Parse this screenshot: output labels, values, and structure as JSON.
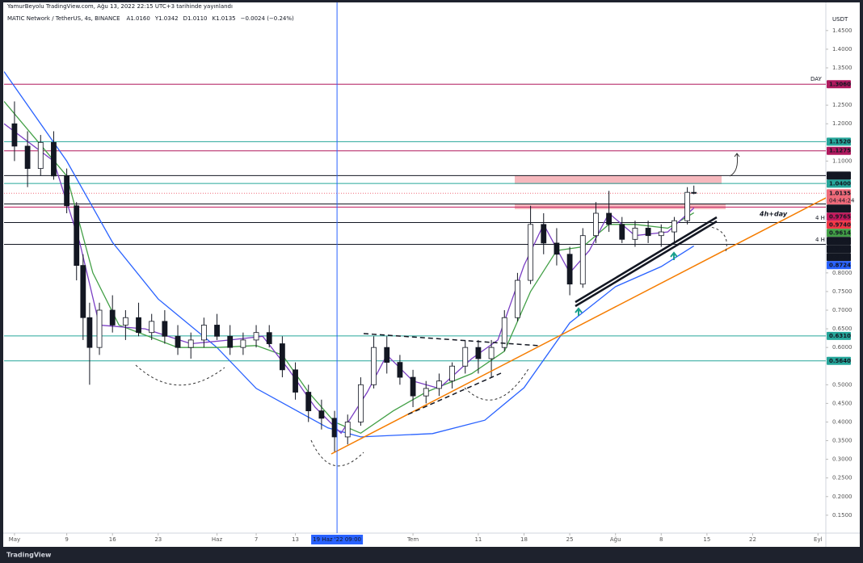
{
  "header": {
    "publisher": "YamurBeyolu TradingView.com, Ağu 13, 2022 22:15 UTC+3 tarihinde yayınlandı"
  },
  "chart_data": {
    "type": "candlestick",
    "symbol": "MATIC Network / TetherUS, 4s, BINANCE",
    "ohlc_legend": [
      "A1.0160",
      "Y1.0342",
      "D1.0110",
      "K1.0135",
      "−0.0024 (−0.24%)"
    ],
    "currency": "USDT",
    "x": [
      0,
      2,
      4,
      6,
      8,
      9.5,
      10.5,
      11.5,
      13,
      15,
      17,
      19,
      21,
      23,
      25,
      27,
      29,
      31,
      33,
      35,
      37,
      39,
      41,
      43,
      45,
      47,
      49,
      51,
      53,
      55,
      57,
      59,
      61,
      63,
      65,
      67,
      69,
      71,
      73,
      75,
      77,
      79,
      81,
      83,
      85,
      87,
      89,
      91,
      93,
      95,
      97,
      99,
      101,
      103,
      104
    ],
    "open": [
      1.2,
      1.14,
      1.08,
      1.15,
      1.06,
      0.98,
      0.82,
      0.68,
      0.6,
      0.7,
      0.66,
      0.68,
      0.64,
      0.67,
      0.63,
      0.6,
      0.62,
      0.66,
      0.63,
      0.6,
      0.62,
      0.64,
      0.61,
      0.54,
      0.48,
      0.43,
      0.41,
      0.36,
      0.4,
      0.5,
      0.6,
      0.56,
      0.52,
      0.47,
      0.49,
      0.51,
      0.55,
      0.6,
      0.57,
      0.6,
      0.68,
      0.78,
      0.93,
      0.88,
      0.85,
      0.77,
      0.9,
      0.96,
      0.93,
      0.89,
      0.92,
      0.9,
      0.91,
      0.94,
      1.016
    ],
    "high": [
      1.26,
      1.18,
      1.17,
      1.18,
      1.08,
      0.99,
      0.85,
      0.72,
      0.72,
      0.74,
      0.7,
      0.72,
      0.69,
      0.7,
      0.66,
      0.64,
      0.68,
      0.69,
      0.66,
      0.64,
      0.66,
      0.66,
      0.63,
      0.56,
      0.5,
      0.46,
      0.43,
      0.42,
      0.52,
      0.63,
      0.63,
      0.58,
      0.54,
      0.51,
      0.53,
      0.56,
      0.62,
      0.62,
      0.62,
      0.7,
      0.8,
      0.98,
      0.96,
      0.92,
      0.87,
      0.92,
      0.99,
      1.02,
      0.95,
      0.94,
      0.94,
      0.93,
      0.95,
      1.03,
      1.0342
    ],
    "low": [
      1.1,
      1.03,
      1.06,
      1.05,
      0.96,
      0.78,
      0.62,
      0.5,
      0.58,
      0.64,
      0.62,
      0.63,
      0.62,
      0.61,
      0.58,
      0.57,
      0.6,
      0.62,
      0.58,
      0.58,
      0.6,
      0.6,
      0.52,
      0.46,
      0.4,
      0.38,
      0.32,
      0.34,
      0.39,
      0.49,
      0.53,
      0.5,
      0.44,
      0.45,
      0.47,
      0.49,
      0.53,
      0.53,
      0.52,
      0.59,
      0.67,
      0.77,
      0.85,
      0.82,
      0.74,
      0.76,
      0.88,
      0.91,
      0.88,
      0.87,
      0.88,
      0.87,
      0.88,
      0.93,
      1.011
    ],
    "close": [
      1.14,
      1.08,
      1.15,
      1.06,
      0.98,
      0.82,
      0.68,
      0.6,
      0.7,
      0.66,
      0.68,
      0.64,
      0.67,
      0.63,
      0.6,
      0.62,
      0.66,
      0.63,
      0.6,
      0.62,
      0.64,
      0.61,
      0.54,
      0.48,
      0.43,
      0.41,
      0.36,
      0.4,
      0.5,
      0.6,
      0.56,
      0.52,
      0.47,
      0.49,
      0.51,
      0.55,
      0.6,
      0.57,
      0.6,
      0.68,
      0.78,
      0.93,
      0.88,
      0.85,
      0.77,
      0.9,
      0.96,
      0.93,
      0.89,
      0.92,
      0.9,
      0.91,
      0.94,
      1.016,
      1.0135
    ],
    "up_color": "#ffffff",
    "down_color": "#131722",
    "moving_averages": [
      {
        "color": "#2962ff",
        "x": [
          -1.6,
          8,
          15,
          22,
          31,
          37,
          48,
          53,
          64,
          72,
          78,
          85,
          92,
          99,
          104
        ],
        "values": [
          1.34,
          1.1,
          0.882,
          0.73,
          0.6,
          0.49,
          0.384,
          0.36,
          0.369,
          0.405,
          0.492,
          0.666,
          0.763,
          0.817,
          0.8724
        ]
      },
      {
        "color": "#43a047",
        "x": [
          -1.6,
          8,
          12,
          16,
          25,
          31,
          37,
          41,
          45,
          49,
          53,
          58,
          63,
          70,
          75,
          79,
          83,
          87,
          91,
          95,
          100,
          104
        ],
        "values": [
          1.26,
          1.06,
          0.8,
          0.66,
          0.6,
          0.6,
          0.605,
          0.58,
          0.48,
          0.4,
          0.37,
          0.43,
          0.48,
          0.53,
          0.59,
          0.75,
          0.86,
          0.87,
          0.93,
          0.93,
          0.92,
          0.9614
        ]
      },
      {
        "color": "#7b3fc4",
        "x": [
          -1.6,
          6,
          10,
          13,
          20,
          27,
          33,
          38,
          42,
          46,
          50,
          54,
          57,
          61,
          65,
          70,
          74,
          78,
          81,
          85,
          88,
          91,
          95,
          100,
          104
        ],
        "values": [
          1.2,
          1.1,
          0.88,
          0.66,
          0.65,
          0.61,
          0.62,
          0.63,
          0.54,
          0.44,
          0.37,
          0.48,
          0.58,
          0.51,
          0.49,
          0.57,
          0.62,
          0.82,
          0.93,
          0.8,
          0.86,
          0.96,
          0.9,
          0.91,
          0.974
        ]
      }
    ],
    "levels": [
      {
        "value": 1.306,
        "label": "1.3060",
        "color": "#b0195e",
        "line": true
      },
      {
        "value": 1.152,
        "label": "1.1520",
        "color": "#26a69a",
        "line": true
      },
      {
        "value": 1.1275,
        "label": "1.1275",
        "color": "#b0195e",
        "line": true
      },
      {
        "value": 1.061,
        "label": "1.0610",
        "color": "#131722",
        "line": true
      },
      {
        "value": 1.04,
        "label": "1.0400",
        "color": "#26a69a",
        "line": true
      },
      {
        "value": 1.0135,
        "label": "1.0135",
        "color": "#f06b7a",
        "line": true,
        "line_style": "dotted",
        "countdown": "04:44:24"
      },
      {
        "value": 0.9849,
        "label": "0.9849",
        "color": "#131722",
        "line": true
      },
      {
        "value": 0.9765,
        "label": "0.9765",
        "color": "#c2185b",
        "line": true
      },
      {
        "value": 0.974,
        "label": "0.9740",
        "color": "#f23645",
        "line": false
      },
      {
        "value": 0.9614,
        "label": "0.9614",
        "color": "#43a047",
        "line": false
      },
      {
        "value": 0.935,
        "label": "0.9350",
        "color": "#131722",
        "line": true
      },
      {
        "value": 0.935,
        "label": "0.9350",
        "color": "#131722",
        "line": false
      },
      {
        "value": 0.8767,
        "label": "0.8767",
        "color": "#131722",
        "line": true
      },
      {
        "value": 0.8724,
        "label": "0.8724",
        "color": "#2962ff",
        "line": false
      },
      {
        "value": 0.631,
        "label": "0.6310",
        "color": "#26a69a",
        "line": true
      },
      {
        "value": 0.564,
        "label": "0.5640",
        "color": "#26a69a",
        "line": true
      }
    ],
    "crosshair": {
      "x": 49.375,
      "label": "19 Haz '22  09:00",
      "color": "#2962ff"
    },
    "xlim": [
      -1.6,
      124.2
    ],
    "ylim": [
      0.102,
      1.493
    ],
    "xticks": [
      {
        "value": 0,
        "label": "May"
      },
      {
        "value": 8,
        "label": "9"
      },
      {
        "value": 15,
        "label": "16"
      },
      {
        "value": 22,
        "label": "23"
      },
      {
        "value": 31,
        "label": "Haz"
      },
      {
        "value": 37,
        "label": "7"
      },
      {
        "value": 43,
        "label": "13"
      },
      {
        "value": 61,
        "label": "Tem"
      },
      {
        "value": 71,
        "label": "11"
      },
      {
        "value": 78,
        "label": "18"
      },
      {
        "value": 85,
        "label": "25"
      },
      {
        "value": 92,
        "label": "Ağu"
      },
      {
        "value": 99,
        "label": "8"
      },
      {
        "value": 106,
        "label": "15"
      },
      {
        "value": 113,
        "label": "22"
      },
      {
        "value": 123,
        "label": "Eyl"
      }
    ],
    "yticks": [
      {
        "value": 1.45,
        "label": "1.4500"
      },
      {
        "value": 1.4,
        "label": "1.4000"
      },
      {
        "value": 1.35,
        "label": "1.3500"
      },
      {
        "value": 1.25,
        "label": "1.2500"
      },
      {
        "value": 1.2,
        "label": "1.2000"
      },
      {
        "value": 1.1,
        "label": "1.1000"
      },
      {
        "value": 0.8,
        "label": "0.8000"
      },
      {
        "value": 0.75,
        "label": "0.7500"
      },
      {
        "value": 0.7,
        "label": "0.7000"
      },
      {
        "value": 0.65,
        "label": "0.6500"
      },
      {
        "value": 0.6,
        "label": "0.6000"
      },
      {
        "value": 0.5,
        "label": "0.5000"
      },
      {
        "value": 0.45,
        "label": "0.4500"
      },
      {
        "value": 0.4,
        "label": "0.4000"
      },
      {
        "value": 0.35,
        "label": "0.3500"
      },
      {
        "value": 0.3,
        "label": "0.3000"
      },
      {
        "value": 0.25,
        "label": "0.2500"
      },
      {
        "value": 0.2,
        "label": "0.2000"
      },
      {
        "value": 0.15,
        "label": "0.1500"
      }
    ]
  },
  "annotations": [
    "DAY",
    "4h+day",
    "4 H",
    "4 H"
  ],
  "footer": {
    "brand": "TradingView"
  }
}
